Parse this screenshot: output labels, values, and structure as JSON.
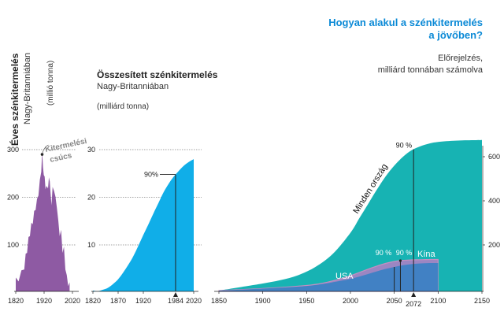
{
  "colors": {
    "purple": "#8e5aa3",
    "blue": "#10aee8",
    "teal": "#17b3b3",
    "usa": "#2b7fc4",
    "china": "#9b86c2",
    "china_edge": "#c48fc1",
    "title_blue": "#0a89d6",
    "gray_text": "#888888",
    "grid": "#444444"
  },
  "left_panel": {
    "title": "Éves szénkitermelés",
    "subtitle": "Nagy-Britanniában",
    "unit": "(millió tonna)",
    "peak_label_1": "Kitermelési",
    "peak_label_2": "csúcs"
  },
  "mid_panel": {
    "title": "Összesített szénkitermelés",
    "subtitle": "Nagy-Britanniában",
    "unit": "(milliárd tonna)",
    "pct_label": "90%"
  },
  "right_panel": {
    "title_1": "Hogyan alakul a szénkitermelés",
    "title_2": "a jövőben?",
    "sub_1": "Előrejelzés,",
    "sub_2": "milliárd tonnában számolva",
    "world_label": "Minden ország",
    "usa_label": "USA",
    "china_label": "Kína",
    "pct_world": "90 %",
    "pct_usa": "90 %",
    "pct_china": "90 %"
  },
  "chart_data": [
    {
      "type": "area",
      "name": "annual-uk",
      "xlim": [
        1820,
        2020
      ],
      "ylim": [
        0,
        320
      ],
      "xticks": [
        "1820",
        "1920",
        "2020"
      ],
      "xtick_values": [
        1820,
        1920,
        2020
      ],
      "yticks": [
        "100",
        "200",
        "300"
      ],
      "ytick_values": [
        100,
        200,
        300
      ],
      "x": [
        1820,
        1830,
        1840,
        1850,
        1855,
        1860,
        1865,
        1870,
        1875,
        1880,
        1885,
        1890,
        1895,
        1900,
        1905,
        1910,
        1913,
        1916,
        1919,
        1922,
        1925,
        1928,
        1931,
        1934,
        1937,
        1940,
        1943,
        1946,
        1950,
        1955,
        1960,
        1965,
        1970,
        1975,
        1980,
        1985,
        1990,
        1995,
        2000,
        2005,
        2010
      ],
      "y": [
        25,
        30,
        40,
        55,
        75,
        90,
        110,
        125,
        140,
        150,
        165,
        180,
        190,
        210,
        230,
        260,
        290,
        270,
        240,
        250,
        210,
        230,
        215,
        225,
        235,
        240,
        200,
        190,
        215,
        220,
        195,
        185,
        145,
        125,
        125,
        90,
        90,
        55,
        30,
        20,
        15
      ]
    },
    {
      "type": "area",
      "name": "cumulative-uk",
      "xlim": [
        1820,
        2020
      ],
      "ylim": [
        0,
        30
      ],
      "xticks": [
        "1820",
        "1870",
        "1920",
        "1984",
        "2020"
      ],
      "xtick_values": [
        1820,
        1870,
        1920,
        1984,
        2020
      ],
      "yticks": [
        "10",
        "20",
        "30"
      ],
      "ytick_values": [
        10,
        20,
        30
      ],
      "x": [
        1820,
        1830,
        1840,
        1850,
        1860,
        1870,
        1880,
        1890,
        1900,
        1910,
        1920,
        1930,
        1940,
        1950,
        1960,
        1970,
        1980,
        1990,
        2000,
        2010,
        2020
      ],
      "y": [
        0,
        0.3,
        0.6,
        1,
        1.8,
        2.8,
        4.2,
        5.8,
        7.6,
        9.8,
        12.1,
        14.3,
        16.6,
        18.8,
        21,
        22.8,
        24.3,
        25.5,
        26.6,
        27.4,
        28
      ],
      "marker_x": 1984,
      "marker_pct": 90
    },
    {
      "type": "area",
      "name": "world-forecast",
      "xlim": [
        1850,
        2150
      ],
      "ylim": [
        0,
        700
      ],
      "xticks": [
        "1850",
        "1900",
        "1950",
        "2000",
        "2050",
        "2100",
        "2150"
      ],
      "xtick_values": [
        1850,
        1900,
        1950,
        2000,
        2050,
        2100,
        2150
      ],
      "yticks": [
        "200",
        "400",
        "600"
      ],
      "ytick_values": [
        200,
        400,
        600
      ],
      "marker_year": "2072",
      "series": [
        {
          "name": "Minden ország",
          "x": [
            1850,
            1880,
            1900,
            1920,
            1940,
            1960,
            1980,
            2000,
            2010,
            2020,
            2030,
            2040,
            2050,
            2060,
            2070,
            2080,
            2090,
            2100,
            2120,
            2140,
            2150
          ],
          "y": [
            2,
            12,
            25,
            40,
            62,
            100,
            160,
            255,
            320,
            385,
            450,
            510,
            560,
            600,
            630,
            648,
            660,
            667,
            673,
            675,
            676
          ]
        },
        {
          "name": "USA",
          "x": [
            1850,
            1900,
            1950,
            1970,
            1990,
            2000,
            2010,
            2020,
            2030,
            2040,
            2050,
            2060,
            2070,
            2080,
            2090,
            2100
          ],
          "y": [
            0,
            2,
            14,
            24,
            38,
            46,
            56,
            68,
            80,
            91,
            100,
            108,
            113,
            116,
            118,
            118
          ]
        },
        {
          "name": "Kína",
          "x": [
            1850,
            1900,
            1950,
            1970,
            1990,
            2000,
            2010,
            2020,
            2030,
            2040,
            2050,
            2060,
            2070,
            2080,
            2090,
            2100
          ],
          "y": [
            0,
            2,
            16,
            28,
            48,
            60,
            75,
            90,
            104,
            116,
            125,
            130,
            132,
            133,
            134,
            134
          ]
        }
      ],
      "markers": [
        2050,
        2057,
        2072
      ]
    }
  ]
}
